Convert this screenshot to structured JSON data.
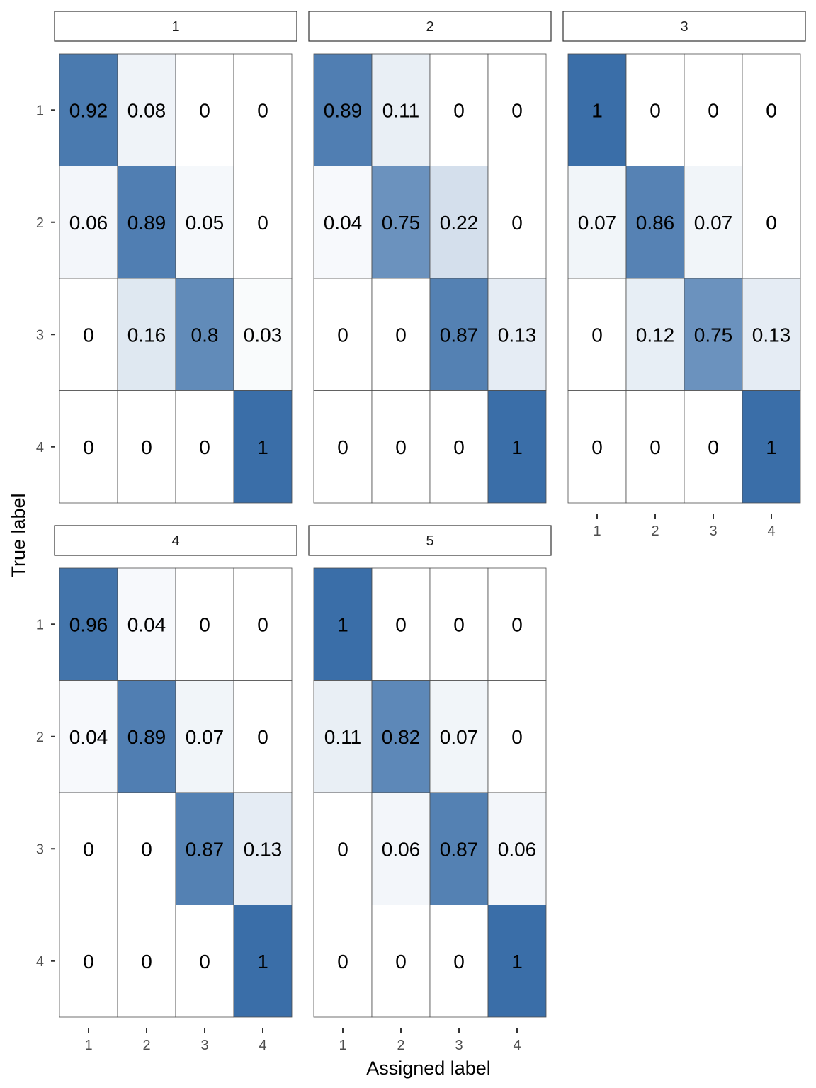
{
  "chart_data": {
    "type": "heatmap",
    "xlabel": "Assigned label",
    "ylabel": "True label",
    "x_categories": [
      "1",
      "2",
      "3",
      "4"
    ],
    "y_categories": [
      "1",
      "2",
      "3",
      "4"
    ],
    "fill_low": "#ffffff",
    "fill_high": "#3a6ea8",
    "facets": [
      {
        "label": "1",
        "matrix": [
          [
            "0.92",
            "0.08",
            "0",
            "0"
          ],
          [
            "0.06",
            "0.89",
            "0.05",
            "0"
          ],
          [
            "0",
            "0.16",
            "0.8",
            "0.03"
          ],
          [
            "0",
            "0",
            "0",
            "1"
          ]
        ]
      },
      {
        "label": "2",
        "matrix": [
          [
            "0.89",
            "0.11",
            "0",
            "0"
          ],
          [
            "0.04",
            "0.75",
            "0.22",
            "0"
          ],
          [
            "0",
            "0",
            "0.87",
            "0.13"
          ],
          [
            "0",
            "0",
            "0",
            "1"
          ]
        ]
      },
      {
        "label": "3",
        "matrix": [
          [
            "1",
            "0",
            "0",
            "0"
          ],
          [
            "0.07",
            "0.86",
            "0.07",
            "0"
          ],
          [
            "0",
            "0.12",
            "0.75",
            "0.13"
          ],
          [
            "0",
            "0",
            "0",
            "1"
          ]
        ]
      },
      {
        "label": "4",
        "matrix": [
          [
            "0.96",
            "0.04",
            "0",
            "0"
          ],
          [
            "0.04",
            "0.89",
            "0.07",
            "0"
          ],
          [
            "0",
            "0",
            "0.87",
            "0.13"
          ],
          [
            "0",
            "0",
            "0",
            "1"
          ]
        ]
      },
      {
        "label": "5",
        "matrix": [
          [
            "1",
            "0",
            "0",
            "0"
          ],
          [
            "0.11",
            "0.82",
            "0.07",
            "0"
          ],
          [
            "0",
            "0.06",
            "0.87",
            "0.06"
          ],
          [
            "0",
            "0",
            "0",
            "1"
          ]
        ]
      }
    ]
  }
}
